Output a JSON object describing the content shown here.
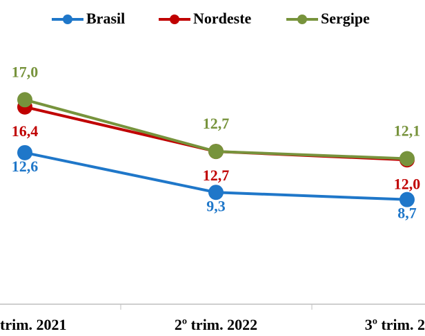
{
  "chart_data": {
    "type": "line",
    "categories": [
      "trim. 2021",
      "2º trim. 2022",
      "3º trim. 2"
    ],
    "series": [
      {
        "name": "Brasil",
        "color": "#1f77c9",
        "values": [
          12.6,
          9.3,
          8.7
        ],
        "value_labels": [
          "12,6",
          "9,3",
          "8,7"
        ]
      },
      {
        "name": "Nordeste",
        "color": "#c00000",
        "values": [
          16.4,
          12.7,
          12.0
        ],
        "value_labels": [
          "16,4",
          "12,7",
          "12,0"
        ]
      },
      {
        "name": "Sergipe",
        "color": "#77933c",
        "values": [
          17.0,
          12.7,
          12.1
        ],
        "value_labels": [
          "17,0",
          "12,7",
          "12,1"
        ]
      }
    ],
    "ylim": [
      0,
      21.5
    ],
    "legend": "top"
  }
}
